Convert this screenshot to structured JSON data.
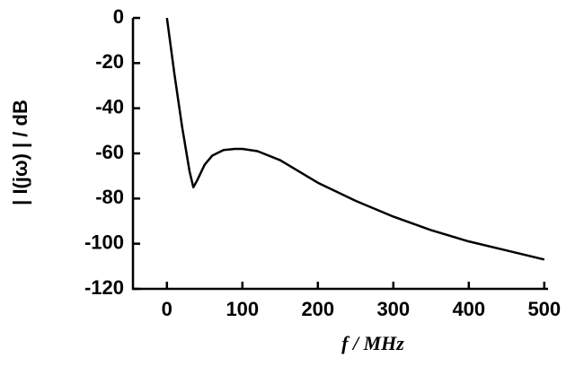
{
  "chart_data": {
    "type": "line",
    "x_label": "f / MHz",
    "y_label": "| I(jω) | / dB",
    "x": [
      0,
      10,
      20,
      30,
      35,
      40,
      50,
      60,
      75,
      90,
      100,
      120,
      150,
      200,
      250,
      300,
      350,
      400,
      450,
      500
    ],
    "series": [
      {
        "color": "#000000",
        "values": [
          0,
          -25,
          -48,
          -68,
          -75,
          -72,
          -65,
          -61,
          -58.5,
          -58,
          -58,
          -59,
          -63,
          -73,
          -81,
          -88,
          -94,
          -99,
          -103,
          -107
        ]
      }
    ],
    "xlim": [
      -45,
      505
    ],
    "xticks": [
      0,
      100,
      200,
      300,
      400,
      500
    ],
    "ylim": [
      -120,
      0
    ],
    "yticks": [
      0,
      -20,
      -40,
      -60,
      -80,
      -100,
      -120
    ],
    "grid": false
  }
}
